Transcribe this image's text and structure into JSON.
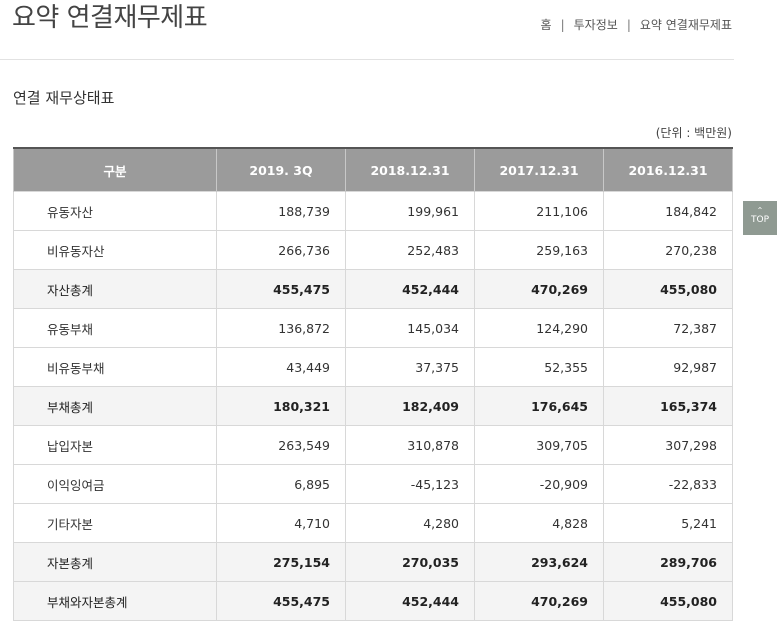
{
  "page": {
    "title": "요약 연결재무제표",
    "breadcrumb": [
      "홈",
      "투자정보",
      "요약 연결재무제표"
    ],
    "breadcrumb_separator": "|"
  },
  "section": {
    "title": "연결 재무상태표",
    "unit_note": "(단위 : 백만원)"
  },
  "table": {
    "headers": [
      "구분",
      "2019. 3Q",
      "2018.12.31",
      "2017.12.31",
      "2016.12.31"
    ],
    "rows": [
      {
        "label": "유동자산",
        "values": [
          "188,739",
          "199,961",
          "211,106",
          "184,842"
        ],
        "total": false
      },
      {
        "label": "비유동자산",
        "values": [
          "266,736",
          "252,483",
          "259,163",
          "270,238"
        ],
        "total": false
      },
      {
        "label": "자산총계",
        "values": [
          "455,475",
          "452,444",
          "470,269",
          "455,080"
        ],
        "total": true
      },
      {
        "label": "유동부채",
        "values": [
          "136,872",
          "145,034",
          "124,290",
          "72,387"
        ],
        "total": false
      },
      {
        "label": "비유동부채",
        "values": [
          "43,449",
          "37,375",
          "52,355",
          "92,987"
        ],
        "total": false
      },
      {
        "label": "부채총계",
        "values": [
          "180,321",
          "182,409",
          "176,645",
          "165,374"
        ],
        "total": true
      },
      {
        "label": "납입자본",
        "values": [
          "263,549",
          "310,878",
          "309,705",
          "307,298"
        ],
        "total": false
      },
      {
        "label": "이익잉여금",
        "values": [
          "6,895",
          "-45,123",
          "-20,909",
          "-22,833"
        ],
        "total": false
      },
      {
        "label": "기타자본",
        "values": [
          "4,710",
          "4,280",
          "4,828",
          "5,241"
        ],
        "total": false
      },
      {
        "label": "자본총계",
        "values": [
          "275,154",
          "270,035",
          "293,624",
          "289,706"
        ],
        "total": true
      },
      {
        "label": "부채와자본총계",
        "values": [
          "455,475",
          "452,444",
          "470,269",
          "455,080"
        ],
        "total": true
      }
    ]
  },
  "top_button": {
    "label": "TOP",
    "icon": "chevron-up-icon"
  },
  "colors": {
    "header_bg": "#9b9b9b",
    "total_row_bg": "#f4f4f4",
    "top_button_bg": "#8f9a92"
  }
}
